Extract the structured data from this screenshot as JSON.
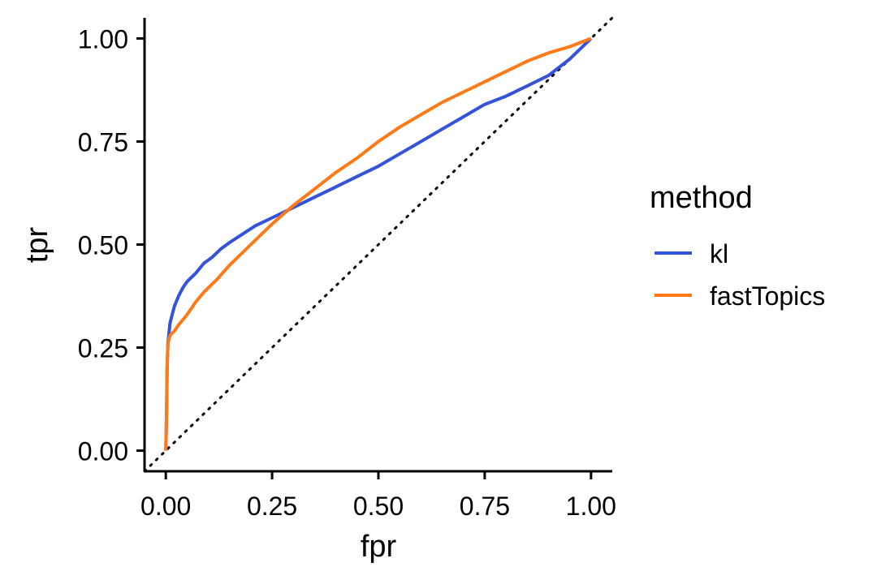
{
  "chart_data": {
    "type": "line",
    "title": "",
    "xlabel": "fpr",
    "ylabel": "tpr",
    "xlim": [
      -0.05,
      1.05
    ],
    "ylim": [
      -0.05,
      1.05
    ],
    "x_ticks": [
      0,
      0.25,
      0.5,
      0.75,
      1
    ],
    "x_tick_labels": [
      "0.00",
      "0.25",
      "0.50",
      "0.75",
      "1.00"
    ],
    "y_ticks": [
      0,
      0.25,
      0.5,
      0.75,
      1
    ],
    "y_tick_labels": [
      "0.00",
      "0.25",
      "0.50",
      "0.75",
      "1.00"
    ],
    "grid": false,
    "legend": {
      "title": "method",
      "position": "right"
    },
    "reference_line": {
      "style": "dotted",
      "color": "#000000",
      "points": [
        [
          0,
          0
        ],
        [
          1,
          1
        ]
      ]
    },
    "series": [
      {
        "name": "kl",
        "color": "#3353d9",
        "points": [
          [
            0,
            0
          ],
          [
            0.002,
            0.1
          ],
          [
            0.003,
            0.2
          ],
          [
            0.005,
            0.26
          ],
          [
            0.01,
            0.31
          ],
          [
            0.02,
            0.35
          ],
          [
            0.03,
            0.375
          ],
          [
            0.04,
            0.395
          ],
          [
            0.05,
            0.41
          ],
          [
            0.07,
            0.43
          ],
          [
            0.09,
            0.455
          ],
          [
            0.11,
            0.47
          ],
          [
            0.13,
            0.49
          ],
          [
            0.15,
            0.505
          ],
          [
            0.18,
            0.525
          ],
          [
            0.21,
            0.545
          ],
          [
            0.25,
            0.565
          ],
          [
            0.3,
            0.59
          ],
          [
            0.35,
            0.615
          ],
          [
            0.4,
            0.64
          ],
          [
            0.45,
            0.665
          ],
          [
            0.5,
            0.69
          ],
          [
            0.55,
            0.72
          ],
          [
            0.6,
            0.75
          ],
          [
            0.65,
            0.78
          ],
          [
            0.7,
            0.81
          ],
          [
            0.75,
            0.84
          ],
          [
            0.8,
            0.86
          ],
          [
            0.85,
            0.885
          ],
          [
            0.9,
            0.91
          ],
          [
            0.95,
            0.95
          ],
          [
            1,
            1
          ]
        ]
      },
      {
        "name": "fastTopics",
        "color": "#ff7a17",
        "points": [
          [
            0,
            0
          ],
          [
            0.002,
            0.1
          ],
          [
            0.003,
            0.2
          ],
          [
            0.005,
            0.26
          ],
          [
            0.01,
            0.28
          ],
          [
            0.02,
            0.29
          ],
          [
            0.03,
            0.305
          ],
          [
            0.05,
            0.33
          ],
          [
            0.07,
            0.36
          ],
          [
            0.09,
            0.385
          ],
          [
            0.12,
            0.415
          ],
          [
            0.15,
            0.45
          ],
          [
            0.2,
            0.5
          ],
          [
            0.25,
            0.55
          ],
          [
            0.3,
            0.595
          ],
          [
            0.35,
            0.635
          ],
          [
            0.4,
            0.675
          ],
          [
            0.45,
            0.71
          ],
          [
            0.5,
            0.75
          ],
          [
            0.55,
            0.785
          ],
          [
            0.6,
            0.815
          ],
          [
            0.65,
            0.845
          ],
          [
            0.7,
            0.87
          ],
          [
            0.75,
            0.895
          ],
          [
            0.8,
            0.92
          ],
          [
            0.85,
            0.945
          ],
          [
            0.9,
            0.965
          ],
          [
            0.95,
            0.98
          ],
          [
            1,
            1
          ]
        ]
      }
    ]
  }
}
